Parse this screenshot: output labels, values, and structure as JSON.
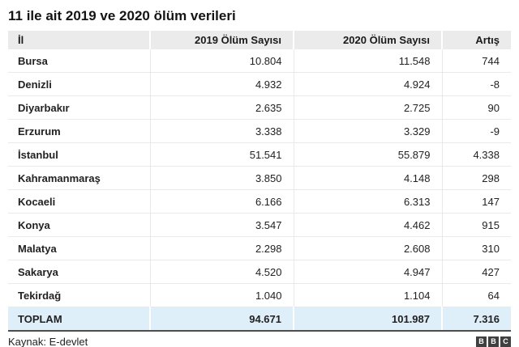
{
  "chart_data": {
    "type": "table",
    "title": "11 ile ait 2019 ve 2020 ölüm verileri",
    "columns": [
      "İl",
      "2019 Ölüm Sayısı",
      "2020 Ölüm Sayısı",
      "Artış"
    ],
    "rows": [
      [
        "Bursa",
        "10.804",
        "11.548",
        "744"
      ],
      [
        "Denizli",
        "4.932",
        "4.924",
        "-8"
      ],
      [
        "Diyarbakır",
        "2.635",
        "2.725",
        "90"
      ],
      [
        "Erzurum",
        "3.338",
        "3.329",
        "-9"
      ],
      [
        "İstanbul",
        "51.541",
        "55.879",
        "4.338"
      ],
      [
        "Kahramanmaraş",
        "3.850",
        "4.148",
        "298"
      ],
      [
        "Kocaeli",
        "6.166",
        "6.313",
        "147"
      ],
      [
        "Konya",
        "3.547",
        "4.462",
        "915"
      ],
      [
        "Malatya",
        "2.298",
        "2.608",
        "310"
      ],
      [
        "Sakarya",
        "4.520",
        "4.947",
        "427"
      ],
      [
        "Tekirdağ",
        "1.040",
        "1.104",
        "64"
      ]
    ],
    "total_row": [
      "TOPLAM",
      "94.671",
      "101.987",
      "7.316"
    ],
    "source": "Kaynak: E-devlet"
  },
  "footer": {
    "logo": [
      "B",
      "B",
      "C"
    ]
  },
  "colors": {
    "header_bg": "#ebebeb",
    "total_row_bg": "#dfeffa",
    "row_border": "#e9e9e9",
    "bottom_rule": "#4d4d4d",
    "logo_bg": "#404040",
    "text": "#222222"
  }
}
